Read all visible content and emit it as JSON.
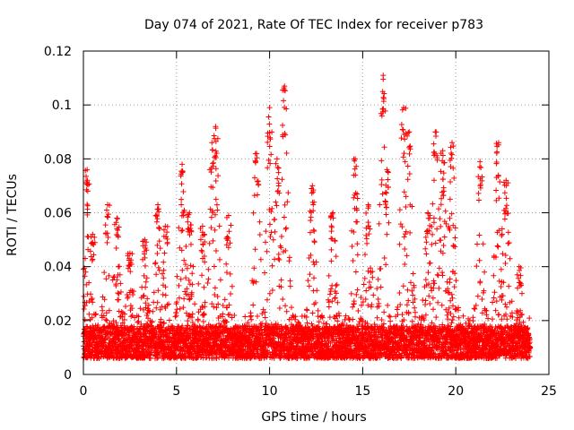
{
  "chart_data": {
    "type": "scatter",
    "title": "Day 074 of 2021, Rate Of TEC Index for receiver p783",
    "xlabel": "GPS time / hours",
    "ylabel": "ROTI / TECUs",
    "xlim": [
      0,
      25
    ],
    "ylim": [
      0,
      0.12
    ],
    "xticks": [
      "0",
      "5",
      "10",
      "15",
      "20",
      "25"
    ],
    "yticks": [
      "0",
      "0.02",
      "0.04",
      "0.06",
      "0.08",
      "0.1",
      "0.12"
    ],
    "grid": true,
    "marker": "+",
    "color": "#ff0000",
    "series": [
      {
        "name": "ROTI",
        "x_range": [
          0,
          24
        ],
        "baseline": 0.012,
        "bursts": [
          {
            "x": 0.2,
            "peak": 0.076
          },
          {
            "x": 0.5,
            "peak": 0.052
          },
          {
            "x": 1.3,
            "peak": 0.063
          },
          {
            "x": 1.8,
            "peak": 0.058
          },
          {
            "x": 2.5,
            "peak": 0.045
          },
          {
            "x": 3.3,
            "peak": 0.05
          },
          {
            "x": 4.0,
            "peak": 0.063
          },
          {
            "x": 4.4,
            "peak": 0.055
          },
          {
            "x": 5.3,
            "peak": 0.078
          },
          {
            "x": 5.7,
            "peak": 0.06
          },
          {
            "x": 6.4,
            "peak": 0.055
          },
          {
            "x": 6.9,
            "peak": 0.086
          },
          {
            "x": 7.1,
            "peak": 0.092
          },
          {
            "x": 7.8,
            "peak": 0.059
          },
          {
            "x": 9.3,
            "peak": 0.082
          },
          {
            "x": 10.0,
            "peak": 0.099
          },
          {
            "x": 10.4,
            "peak": 0.08
          },
          {
            "x": 10.8,
            "peak": 0.107
          },
          {
            "x": 12.3,
            "peak": 0.07
          },
          {
            "x": 13.4,
            "peak": 0.06
          },
          {
            "x": 14.6,
            "peak": 0.08
          },
          {
            "x": 15.3,
            "peak": 0.063
          },
          {
            "x": 16.1,
            "peak": 0.111
          },
          {
            "x": 16.3,
            "peak": 0.076
          },
          {
            "x": 17.2,
            "peak": 0.099
          },
          {
            "x": 17.5,
            "peak": 0.09
          },
          {
            "x": 18.5,
            "peak": 0.06
          },
          {
            "x": 18.9,
            "peak": 0.09
          },
          {
            "x": 19.3,
            "peak": 0.083
          },
          {
            "x": 19.8,
            "peak": 0.086
          },
          {
            "x": 21.3,
            "peak": 0.079
          },
          {
            "x": 22.3,
            "peak": 0.086
          },
          {
            "x": 22.7,
            "peak": 0.072
          },
          {
            "x": 23.4,
            "peak": 0.04
          }
        ]
      }
    ]
  }
}
